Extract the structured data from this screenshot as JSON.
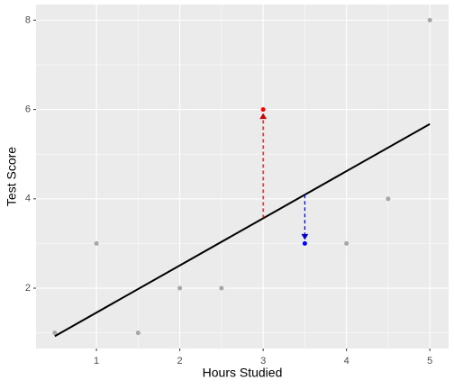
{
  "chart_data": {
    "type": "scatter",
    "x_label": "Hours Studied",
    "y_label": "Test Score",
    "x": [
      0.5,
      1,
      1.5,
      2,
      2.5,
      3,
      3.5,
      4,
      4.5,
      5
    ],
    "values": [
      1,
      3,
      1,
      2,
      2,
      6,
      3,
      3,
      4,
      8
    ],
    "colors": [
      "#a6a6a6",
      "#a6a6a6",
      "#a6a6a6",
      "#a6a6a6",
      "#a6a6a6",
      "#ff0000",
      "#0000ff",
      "#a6a6a6",
      "#a6a6a6",
      "#a6a6a6"
    ],
    "fit_line": {
      "x": [
        0.5,
        5
      ],
      "values": [
        0.925,
        5.675
      ],
      "color": "#000000"
    },
    "residuals": [
      {
        "x": 3,
        "from": 3.564,
        "to": 6,
        "color": "#cc0000"
      },
      {
        "x": 3.5,
        "from": 4.092,
        "to": 3,
        "color": "#0000cc"
      }
    ],
    "xlim": [
      0.275,
      5.225
    ],
    "ylim": [
      0.65,
      8.35
    ],
    "xticks": [
      1,
      2,
      3,
      4,
      5
    ],
    "yticks": [
      2,
      4,
      6,
      8
    ],
    "grid": true
  }
}
